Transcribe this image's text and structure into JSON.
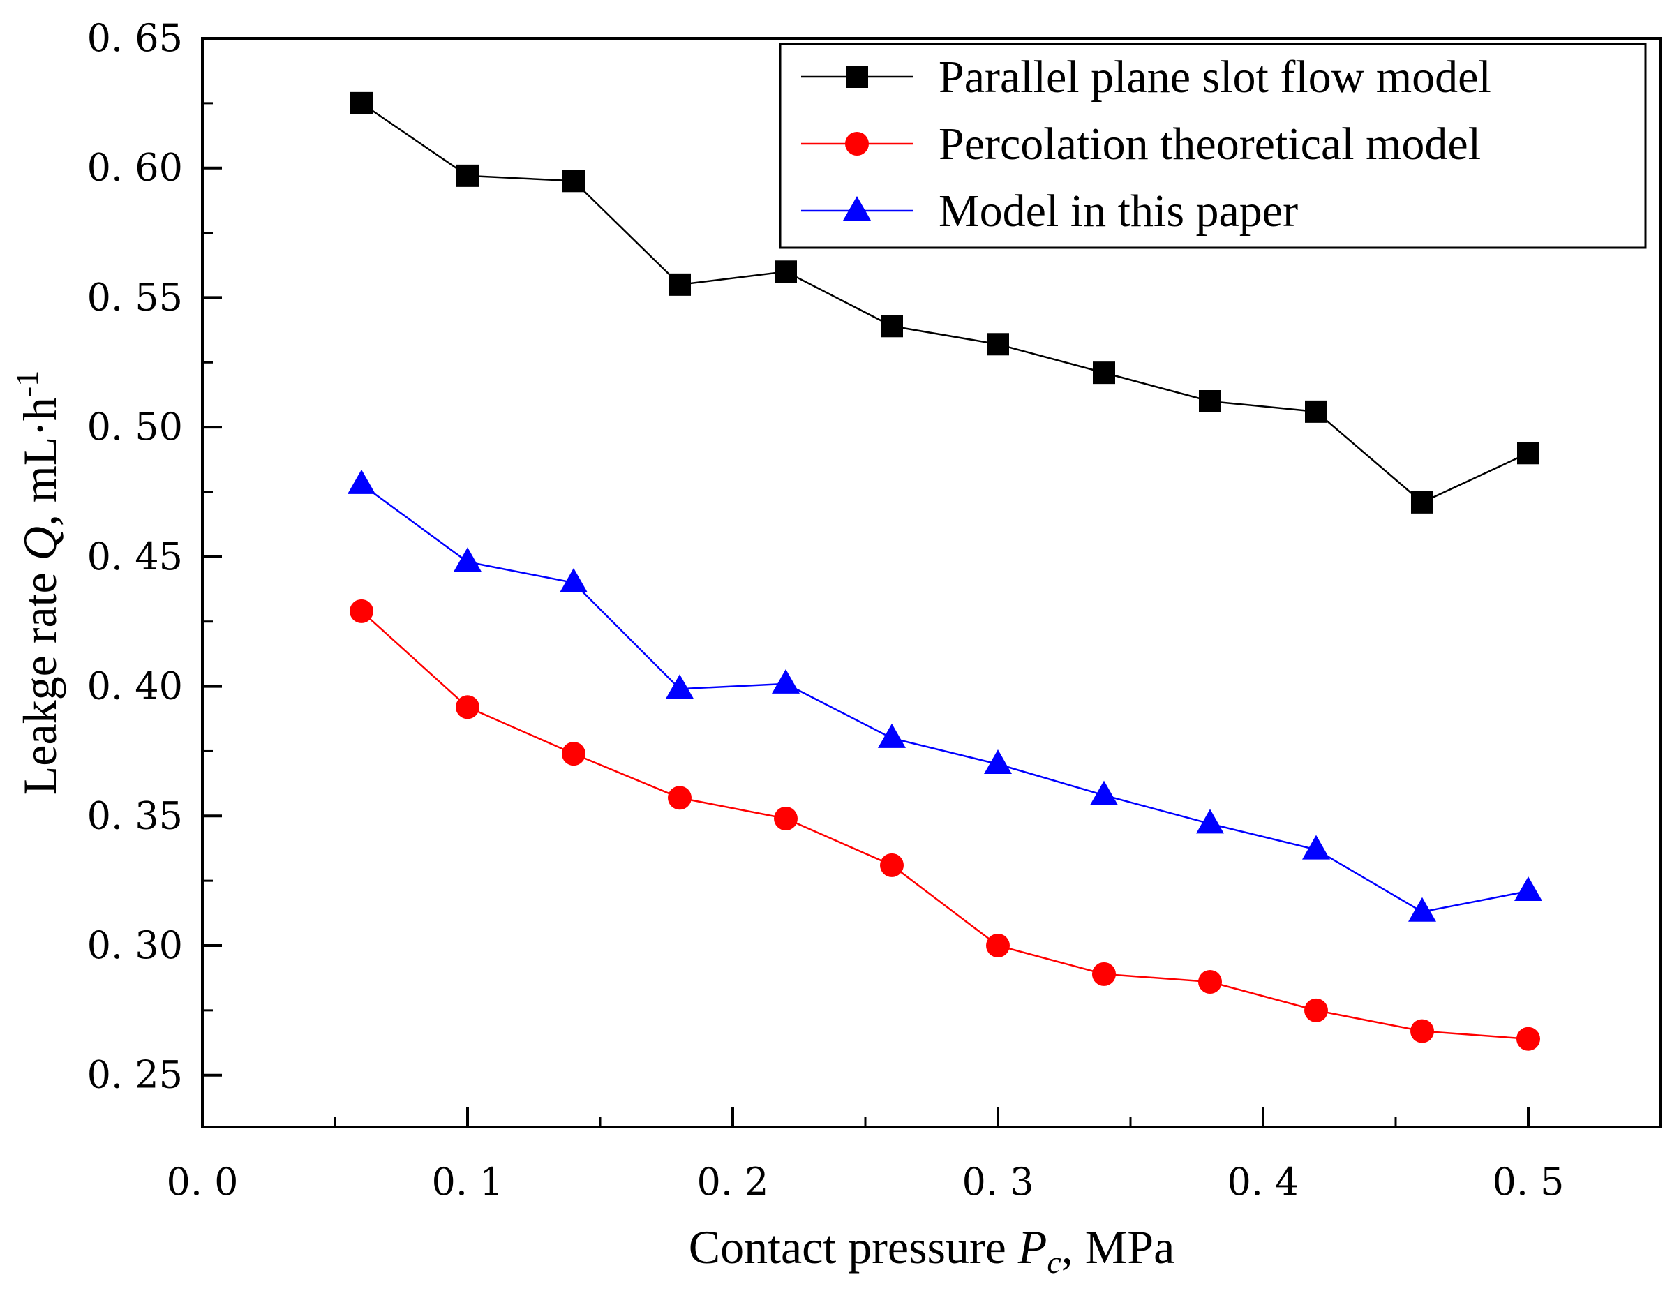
{
  "chart_data": {
    "type": "line",
    "xlabel": {
      "main": "Contact pressure",
      "var": "P",
      "sub": "c",
      "unit": ",  MPa"
    },
    "ylabel": {
      "main": "Leakge rate",
      "var": "Q",
      "unit": ",  mL·h",
      "sup": "-1"
    },
    "xlim": [
      0.0,
      0.55
    ],
    "ylim": [
      0.23,
      0.65
    ],
    "xticks": [
      0.0,
      0.1,
      0.2,
      0.3,
      0.4,
      0.5
    ],
    "xtick_labels": [
      "0. 0",
      "0. 1",
      "0. 2",
      "0. 3",
      "0. 4",
      "0. 5"
    ],
    "yticks": [
      0.25,
      0.3,
      0.35,
      0.4,
      0.45,
      0.5,
      0.55,
      0.6,
      0.65
    ],
    "ytick_labels": [
      "0. 25",
      "0. 30",
      "0. 35",
      "0. 40",
      "0. 45",
      "0. 50",
      "0. 55",
      "0. 60",
      "0. 65"
    ],
    "legend_position": "top-right",
    "grid": false,
    "x": [
      0.06,
      0.1,
      0.14,
      0.18,
      0.22,
      0.26,
      0.3,
      0.34,
      0.38,
      0.42,
      0.46,
      0.5
    ],
    "series": [
      {
        "name": "Parallel plane slot flow model",
        "color": "#000000",
        "marker": "square",
        "values": [
          0.625,
          0.597,
          0.595,
          0.555,
          0.56,
          0.539,
          0.532,
          0.521,
          0.51,
          0.506,
          0.471,
          0.49
        ]
      },
      {
        "name": "Percolation theoretical model",
        "color": "#ff0000",
        "marker": "circle",
        "values": [
          0.429,
          0.392,
          0.374,
          0.357,
          0.349,
          0.331,
          0.3,
          0.289,
          0.286,
          0.275,
          0.267,
          0.264
        ]
      },
      {
        "name": "Model in this paper",
        "color": "#0000ff",
        "marker": "triangle",
        "values": [
          0.478,
          0.448,
          0.44,
          0.399,
          0.401,
          0.38,
          0.37,
          0.358,
          0.347,
          0.337,
          0.313,
          0.321
        ]
      }
    ]
  }
}
